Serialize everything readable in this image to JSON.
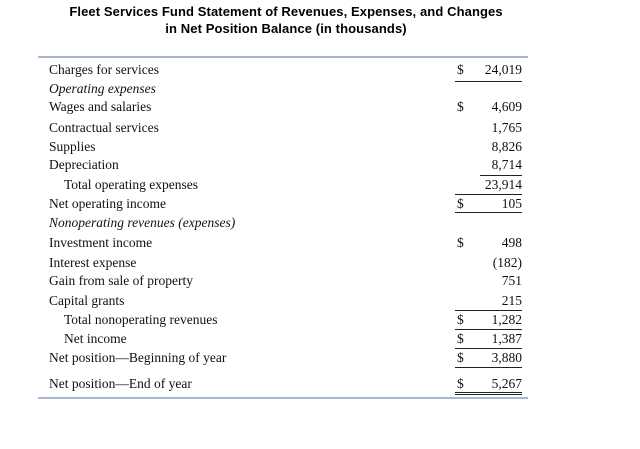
{
  "title": {
    "line1": "Fleet Services Fund Statement of Revenues, Expenses, and Changes",
    "line2": "in Net Position Balance (in thousands)"
  },
  "rows": [
    {
      "label": "Charges for services",
      "dollar": "$",
      "value": "24,019"
    },
    {
      "label": "Operating expenses",
      "dollar": "",
      "value": ""
    },
    {
      "label": "Wages and salaries",
      "dollar": "$",
      "value": "4,609"
    },
    {
      "label": "Contractual services",
      "dollar": "",
      "value": "1,765"
    },
    {
      "label": "Supplies",
      "dollar": "",
      "value": "8,826"
    },
    {
      "label": "Depreciation",
      "dollar": "",
      "value": "8,714"
    },
    {
      "label": "Total operating expenses",
      "dollar": "",
      "value": "23,914"
    },
    {
      "label": "Net operating income",
      "dollar": "$",
      "value": "105"
    },
    {
      "label": "Nonoperating revenues (expenses)",
      "dollar": "",
      "value": ""
    },
    {
      "label": "Investment income",
      "dollar": "$",
      "value": "498"
    },
    {
      "label": "Interest expense",
      "dollar": "",
      "value": "(182)"
    },
    {
      "label": "Gain from sale of property",
      "dollar": "",
      "value": "751"
    },
    {
      "label": "Capital grants",
      "dollar": "",
      "value": "215"
    },
    {
      "label": "Total nonoperating revenues",
      "dollar": "$",
      "value": "1,282"
    },
    {
      "label": "Net income",
      "dollar": "$",
      "value": "1,387"
    },
    {
      "label": "Net position—Beginning of year",
      "dollar": "$",
      "value": "3,880"
    },
    {
      "label": "Net position—End of year",
      "dollar": "$",
      "value": "5,267"
    }
  ]
}
